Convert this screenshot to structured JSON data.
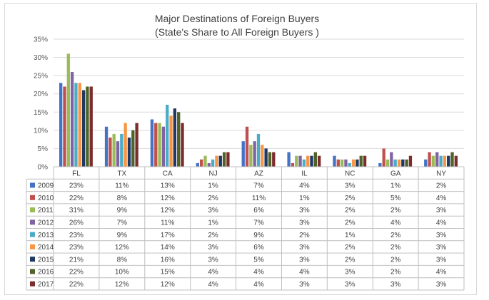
{
  "chart_data": {
    "type": "bar",
    "title": "Major Destinations of Foreign Buyers",
    "subtitle": "(State's Share to All Foreign Buyers )",
    "categories": [
      "FL",
      "TX",
      "CA",
      "NJ",
      "AZ",
      "IL",
      "NC",
      "GA",
      "NY"
    ],
    "ylim": [
      0,
      35
    ],
    "yticks": [
      "0%",
      "5%",
      "10%",
      "15%",
      "20%",
      "25%",
      "30%",
      "35%"
    ],
    "grid": true,
    "legend": "data-table",
    "series": [
      {
        "name": "2009",
        "color": "#4472c4",
        "values": [
          23,
          11,
          13,
          1,
          7,
          4,
          3,
          1,
          2
        ],
        "labels": [
          "23%",
          "11%",
          "13%",
          "1%",
          "7%",
          "4%",
          "3%",
          "1%",
          "2%"
        ]
      },
      {
        "name": "2010",
        "color": "#c0504d",
        "values": [
          22,
          8,
          12,
          2,
          11,
          1,
          2,
          5,
          4
        ],
        "labels": [
          "22%",
          "8%",
          "12%",
          "2%",
          "11%",
          "1%",
          "2%",
          "5%",
          "4%"
        ]
      },
      {
        "name": "2011",
        "color": "#9bbb59",
        "values": [
          31,
          9,
          12,
          3,
          6,
          3,
          2,
          2,
          3
        ],
        "labels": [
          "31%",
          "9%",
          "12%",
          "3%",
          "6%",
          "3%",
          "2%",
          "2%",
          "3%"
        ]
      },
      {
        "name": "2012",
        "color": "#8064a2",
        "values": [
          26,
          7,
          11,
          1,
          7,
          3,
          2,
          4,
          4
        ],
        "labels": [
          "26%",
          "7%",
          "11%",
          "1%",
          "7%",
          "3%",
          "2%",
          "4%",
          "4%"
        ]
      },
      {
        "name": "2013",
        "color": "#4bacc6",
        "values": [
          23,
          9,
          17,
          2,
          9,
          2,
          1,
          2,
          3
        ],
        "labels": [
          "23%",
          "9%",
          "17%",
          "2%",
          "9%",
          "2%",
          "1%",
          "2%",
          "3%"
        ]
      },
      {
        "name": "2014",
        "color": "#f79646",
        "values": [
          23,
          12,
          14,
          3,
          6,
          3,
          2,
          2,
          3
        ],
        "labels": [
          "23%",
          "12%",
          "14%",
          "3%",
          "6%",
          "3%",
          "2%",
          "2%",
          "3%"
        ]
      },
      {
        "name": "2015",
        "color": "#1f3864",
        "values": [
          21,
          8,
          16,
          3,
          5,
          3,
          2,
          2,
          3
        ],
        "labels": [
          "21%",
          "8%",
          "16%",
          "3%",
          "5%",
          "3%",
          "2%",
          "2%",
          "3%"
        ]
      },
      {
        "name": "2016",
        "color": "#4f6228",
        "values": [
          22,
          10,
          15,
          4,
          4,
          4,
          3,
          2,
          4
        ],
        "labels": [
          "22%",
          "10%",
          "15%",
          "4%",
          "4%",
          "4%",
          "3%",
          "2%",
          "4%"
        ]
      },
      {
        "name": "2017",
        "color": "#7b2c2c",
        "values": [
          22,
          12,
          12,
          4,
          4,
          3,
          3,
          3,
          3
        ],
        "labels": [
          "22%",
          "12%",
          "12%",
          "4%",
          "4%",
          "3%",
          "3%",
          "3%",
          "3%"
        ]
      }
    ]
  }
}
